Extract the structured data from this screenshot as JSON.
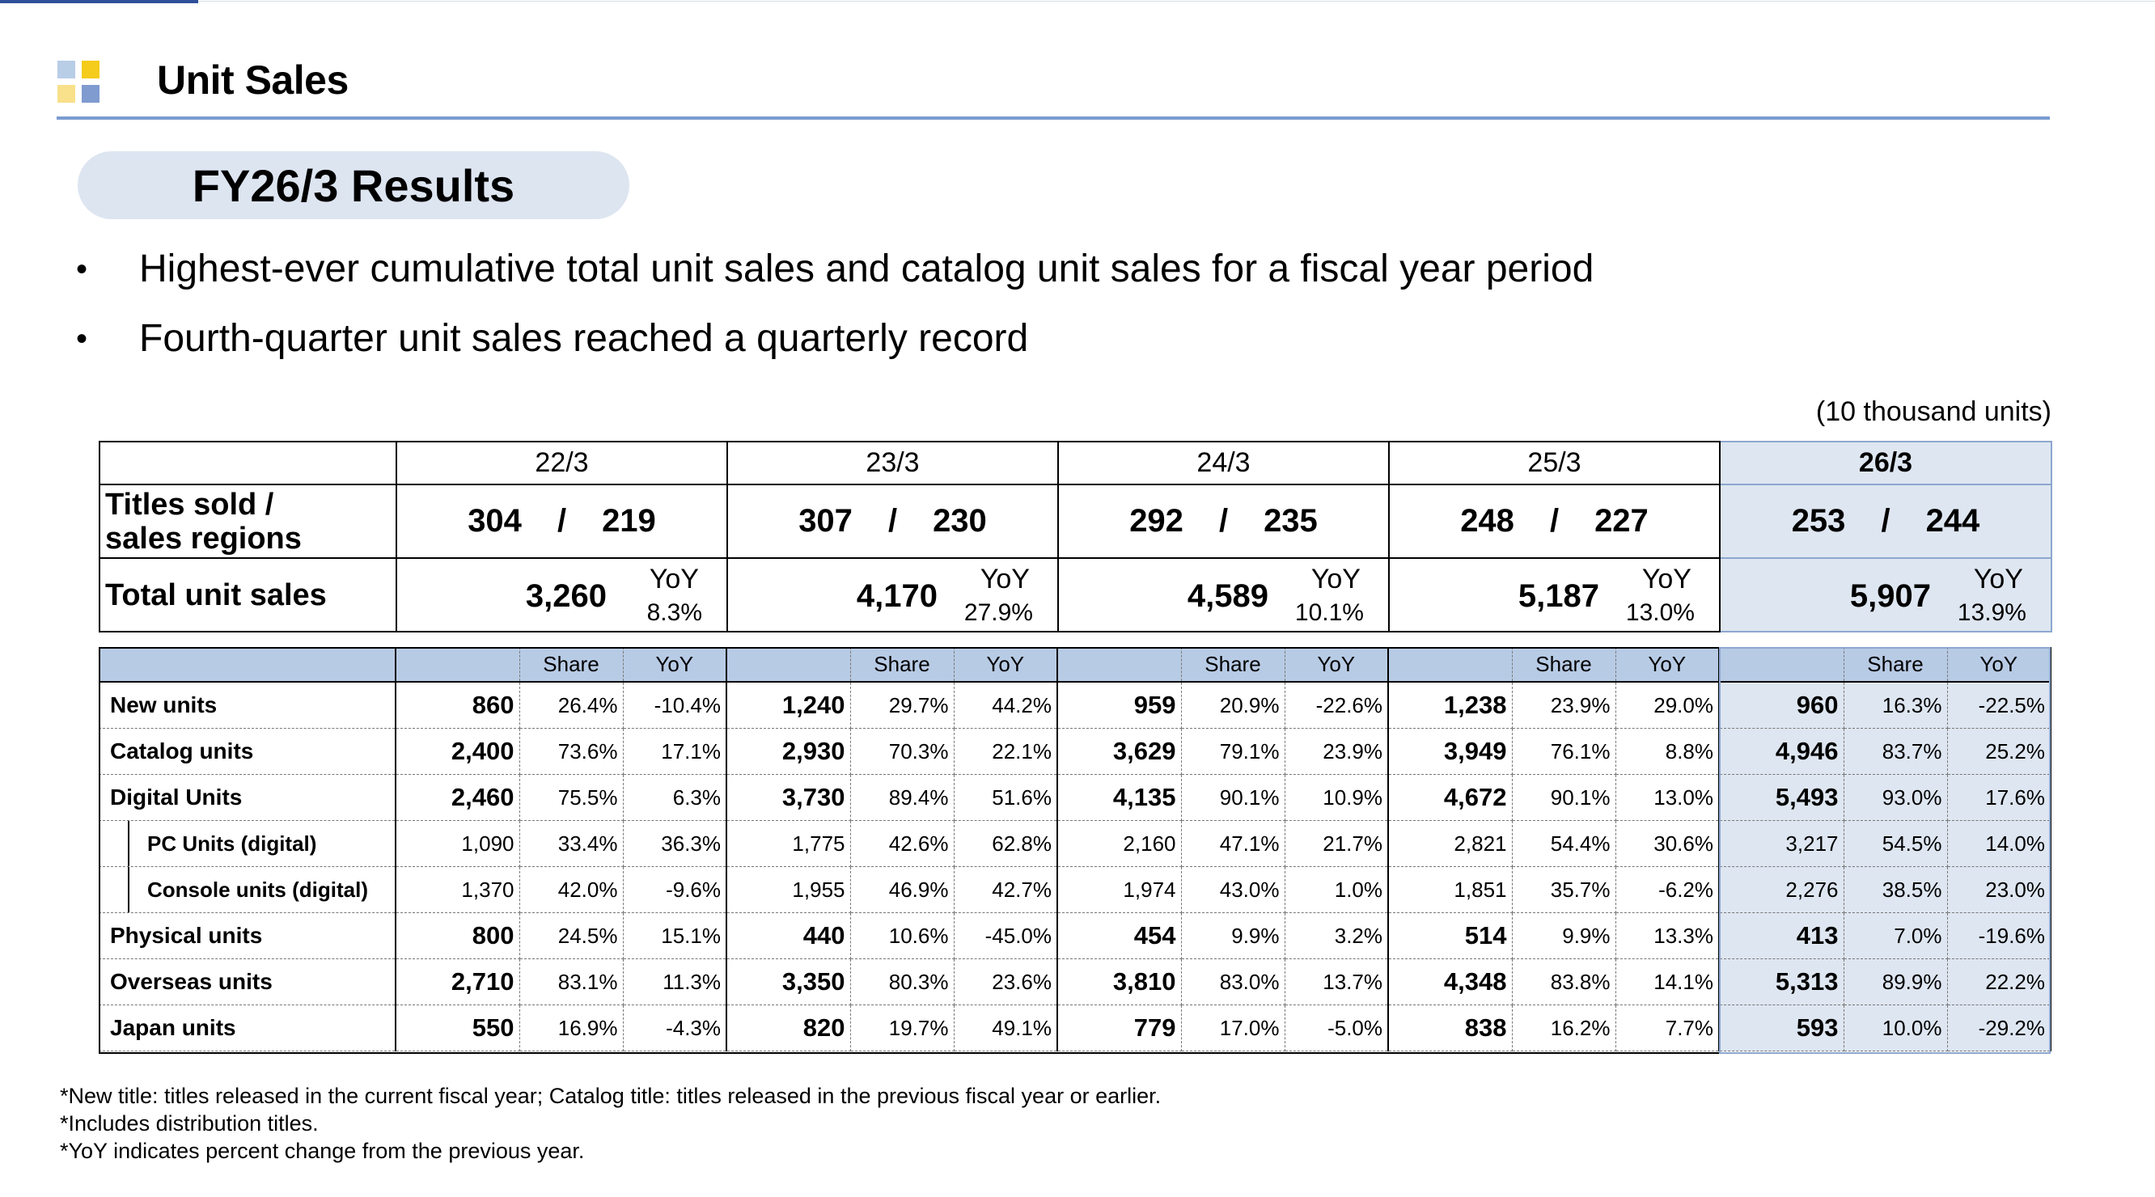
{
  "header": {
    "title": "Unit Sales"
  },
  "section_title": "FY26/3 Results",
  "bullets": [
    "Highest-ever cumulative total unit sales and catalog unit sales for a fiscal year period",
    "Fourth-quarter unit sales reached a quarterly record"
  ],
  "unit_note": "(10 thousand units)",
  "summary": {
    "years": [
      "22/3",
      "23/3",
      "24/3",
      "25/3",
      "26/3"
    ],
    "titles_label_line1": "Titles sold /",
    "titles_label_line2": "sales regions",
    "titles": [
      {
        "sold": "304",
        "sep": "/",
        "regions": "219"
      },
      {
        "sold": "307",
        "sep": "/",
        "regions": "230"
      },
      {
        "sold": "292",
        "sep": "/",
        "regions": "235"
      },
      {
        "sold": "248",
        "sep": "/",
        "regions": "227"
      },
      {
        "sold": "253",
        "sep": "/",
        "regions": "244"
      }
    ],
    "total_label": "Total unit sales",
    "yoy_label": "YoY",
    "totals": [
      {
        "value": "3,260",
        "yoy": "8.3%"
      },
      {
        "value": "4,170",
        "yoy": "27.9%"
      },
      {
        "value": "4,589",
        "yoy": "10.1%"
      },
      {
        "value": "5,187",
        "yoy": "13.0%"
      },
      {
        "value": "5,907",
        "yoy": "13.9%"
      }
    ]
  },
  "detail": {
    "share_label": "Share",
    "yoy_label": "YoY",
    "rows": [
      {
        "label": "New units",
        "sub": false,
        "bold": true,
        "cells": [
          [
            "860",
            "26.4%",
            "-10.4%"
          ],
          [
            "1,240",
            "29.7%",
            "44.2%"
          ],
          [
            "959",
            "20.9%",
            "-22.6%"
          ],
          [
            "1,238",
            "23.9%",
            "29.0%"
          ],
          [
            "960",
            "16.3%",
            "-22.5%"
          ]
        ]
      },
      {
        "label": "Catalog units",
        "sub": false,
        "bold": true,
        "cells": [
          [
            "2,400",
            "73.6%",
            "17.1%"
          ],
          [
            "2,930",
            "70.3%",
            "22.1%"
          ],
          [
            "3,629",
            "79.1%",
            "23.9%"
          ],
          [
            "3,949",
            "76.1%",
            "8.8%"
          ],
          [
            "4,946",
            "83.7%",
            "25.2%"
          ]
        ]
      },
      {
        "label": "Digital Units",
        "sub": false,
        "bold": true,
        "cells": [
          [
            "2,460",
            "75.5%",
            "6.3%"
          ],
          [
            "3,730",
            "89.4%",
            "51.6%"
          ],
          [
            "4,135",
            "90.1%",
            "10.9%"
          ],
          [
            "4,672",
            "90.1%",
            "13.0%"
          ],
          [
            "5,493",
            "93.0%",
            "17.6%"
          ]
        ]
      },
      {
        "label": "PC Units (digital)",
        "sub": true,
        "bold": false,
        "cells": [
          [
            "1,090",
            "33.4%",
            "36.3%"
          ],
          [
            "1,775",
            "42.6%",
            "62.8%"
          ],
          [
            "2,160",
            "47.1%",
            "21.7%"
          ],
          [
            "2,821",
            "54.4%",
            "30.6%"
          ],
          [
            "3,217",
            "54.5%",
            "14.0%"
          ]
        ]
      },
      {
        "label": "Console units (digital)",
        "sub": true,
        "bold": false,
        "cells": [
          [
            "1,370",
            "42.0%",
            "-9.6%"
          ],
          [
            "1,955",
            "46.9%",
            "42.7%"
          ],
          [
            "1,974",
            "43.0%",
            "1.0%"
          ],
          [
            "1,851",
            "35.7%",
            "-6.2%"
          ],
          [
            "2,276",
            "38.5%",
            "23.0%"
          ]
        ]
      },
      {
        "label": "Physical units",
        "sub": false,
        "bold": true,
        "cells": [
          [
            "800",
            "24.5%",
            "15.1%"
          ],
          [
            "440",
            "10.6%",
            "-45.0%"
          ],
          [
            "454",
            "9.9%",
            "3.2%"
          ],
          [
            "514",
            "9.9%",
            "13.3%"
          ],
          [
            "413",
            "7.0%",
            "-19.6%"
          ]
        ]
      },
      {
        "label": "Overseas units",
        "sub": false,
        "bold": true,
        "cells": [
          [
            "2,710",
            "83.1%",
            "11.3%"
          ],
          [
            "3,350",
            "80.3%",
            "23.6%"
          ],
          [
            "3,810",
            "83.0%",
            "13.7%"
          ],
          [
            "4,348",
            "83.8%",
            "14.1%"
          ],
          [
            "5,313",
            "89.9%",
            "22.2%"
          ]
        ]
      },
      {
        "label": "Japan units",
        "sub": false,
        "bold": true,
        "cells": [
          [
            "550",
            "16.9%",
            "-4.3%"
          ],
          [
            "820",
            "19.7%",
            "49.1%"
          ],
          [
            "779",
            "17.0%",
            "-5.0%"
          ],
          [
            "838",
            "16.2%",
            "7.7%"
          ],
          [
            "593",
            "10.0%",
            "-29.2%"
          ]
        ]
      }
    ]
  },
  "footnotes": [
    "*New title: titles released in the current fiscal year; Catalog title: titles released in the previous fiscal year or earlier.",
    "*Includes distribution titles.",
    "*YoY indicates percent change from the previous year."
  ],
  "colors": {
    "accent": "#2e4f9a",
    "rule": "#7b9bd0",
    "highlight": "#dee6f1",
    "table_header": "#b8cbe5"
  }
}
